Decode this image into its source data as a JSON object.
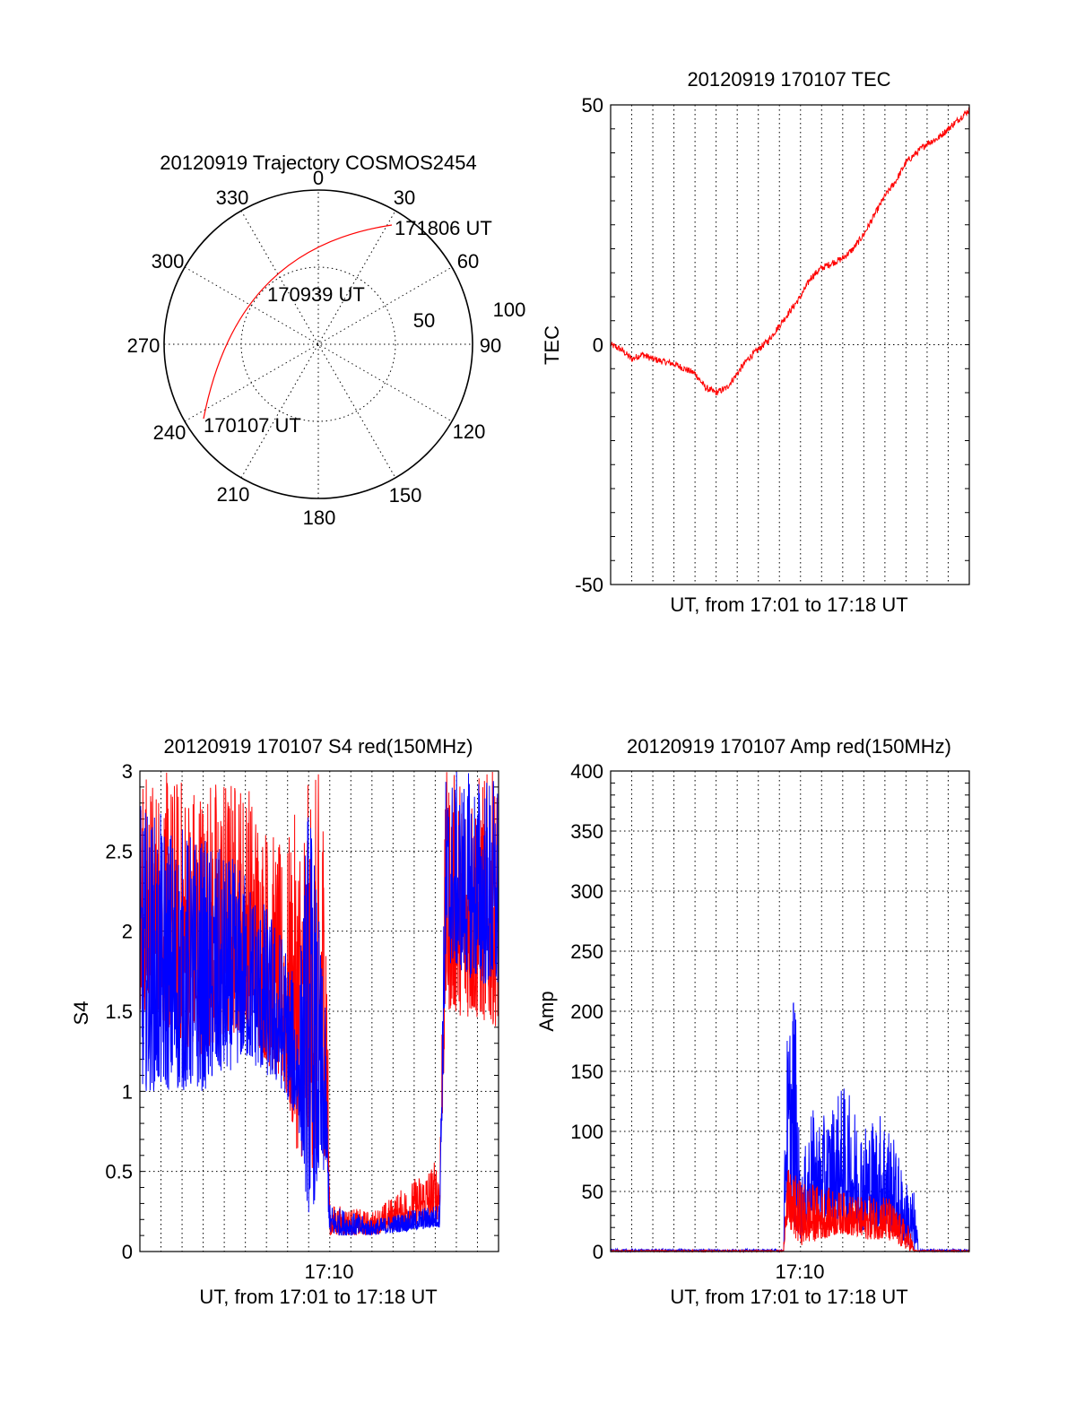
{
  "colors": {
    "red": "#ff0000",
    "blue": "#0000ff",
    "axis": "#000000"
  },
  "chart_data": [
    {
      "id": "trajectory",
      "type": "polar",
      "title": "20120919 Trajectory COSMOS2454",
      "azimuth_labels": [
        "0",
        "30",
        "60",
        "90",
        "120",
        "150",
        "180",
        "210",
        "240",
        "270",
        "300",
        "330"
      ],
      "radial_labels": [
        "50",
        "100"
      ],
      "rlim": [
        0,
        100
      ],
      "annotations": [
        {
          "text": "171806 UT",
          "az": 34,
          "r": 97
        },
        {
          "text": "170939 UT",
          "az": 355,
          "r": 32
        },
        {
          "text": "170107 UT",
          "az": 235,
          "r": 46
        }
      ],
      "trajectory": {
        "start_label": "170107 UT",
        "end_label": "171806 UT",
        "start": {
          "az": 236,
          "r": 93
        },
        "end": {
          "az": 47,
          "r": 92
        }
      }
    },
    {
      "id": "tec",
      "type": "line",
      "title": "20120919 170107 TEC",
      "xlabel": "UT, from 17:01 to 17:18 UT",
      "ylabel": "TEC",
      "x_range_minutes": [
        0,
        17.0
      ],
      "ylim": [
        -50,
        50
      ],
      "yticks": [
        "50",
        "0",
        "-50"
      ],
      "series": [
        {
          "color": "red",
          "points": [
            [
              0,
              0
            ],
            [
              0.5,
              -1
            ],
            [
              1,
              -3
            ],
            [
              1.5,
              -2
            ],
            [
              2,
              -3
            ],
            [
              3,
              -4
            ],
            [
              4,
              -6
            ],
            [
              4.5,
              -9
            ],
            [
              5,
              -10
            ],
            [
              5.5,
              -9
            ],
            [
              6,
              -6
            ],
            [
              6.5,
              -3
            ],
            [
              7,
              -1
            ],
            [
              7.5,
              1
            ],
            [
              8,
              4
            ],
            [
              8.5,
              7
            ],
            [
              9,
              10
            ],
            [
              9.5,
              14
            ],
            [
              10,
              16
            ],
            [
              10.5,
              17
            ],
            [
              11,
              18
            ],
            [
              11.5,
              20
            ],
            [
              12,
              23
            ],
            [
              12.5,
              27
            ],
            [
              13,
              31
            ],
            [
              13.5,
              34
            ],
            [
              14,
              38
            ],
            [
              14.5,
              40
            ],
            [
              15,
              42
            ],
            [
              15.5,
              43
            ],
            [
              16,
              45
            ],
            [
              16.5,
              47
            ],
            [
              17,
              49
            ]
          ]
        }
      ]
    },
    {
      "id": "s4",
      "type": "line",
      "title": "20120919 170107 S4 red(150MHz)",
      "xlabel": "UT, from 17:01 to 17:18 UT",
      "ylabel": "S4",
      "xticks": [
        "17:10"
      ],
      "x_range_minutes": [
        0,
        17.0
      ],
      "ylim": [
        0,
        3
      ],
      "yticks": [
        "0",
        "0.5",
        "1",
        "1.5",
        "2",
        "2.5",
        "3"
      ],
      "series": [
        {
          "color": "red",
          "envelope": [
            [
              0,
              1.5,
              3
            ],
            [
              3,
              1.2,
              3
            ],
            [
              5,
              1.4,
              3
            ],
            [
              6.8,
              1.0,
              2.5
            ],
            [
              7.5,
              0.6,
              2.8
            ],
            [
              8.2,
              0.5,
              3
            ],
            [
              8.8,
              0.6,
              3
            ],
            [
              9.0,
              0.1,
              0.3
            ],
            [
              11,
              0.1,
              0.25
            ],
            [
              12.5,
              0.15,
              0.4
            ],
            [
              14.2,
              0.2,
              0.6
            ],
            [
              14.5,
              1.5,
              3
            ],
            [
              17,
              1.4,
              3
            ]
          ]
        },
        {
          "color": "blue",
          "envelope": [
            [
              0,
              1.0,
              2.8
            ],
            [
              3,
              1.0,
              2.6
            ],
            [
              5,
              1.2,
              2.4
            ],
            [
              6.8,
              1.0,
              2.0
            ],
            [
              7.5,
              0.8,
              1.6
            ],
            [
              8.0,
              0.2,
              3
            ],
            [
              8.8,
              0.5,
              1.5
            ],
            [
              9.0,
              0.1,
              0.3
            ],
            [
              11,
              0.1,
              0.2
            ],
            [
              14.2,
              0.15,
              0.3
            ],
            [
              14.5,
              1.8,
              3
            ],
            [
              17,
              1.6,
              3
            ]
          ]
        }
      ]
    },
    {
      "id": "amp",
      "type": "line",
      "title": "20120919 170107 Amp red(150MHz)",
      "xlabel": "UT, from 17:01 to 17:18 UT",
      "ylabel": "Amp",
      "xticks": [
        "17:10"
      ],
      "x_range_minutes": [
        0,
        17.0
      ],
      "ylim": [
        0,
        400
      ],
      "yticks": [
        "0",
        "50",
        "100",
        "150",
        "200",
        "250",
        "300",
        "350",
        "400"
      ],
      "series": [
        {
          "color": "blue",
          "envelope": [
            [
              0,
              0,
              2
            ],
            [
              8.2,
              0,
              2
            ],
            [
              8.3,
              40,
              170
            ],
            [
              8.7,
              20,
              240
            ],
            [
              9.0,
              10,
              60
            ],
            [
              9.5,
              30,
              120
            ],
            [
              10,
              20,
              110
            ],
            [
              11,
              25,
              140
            ],
            [
              12,
              15,
              110
            ],
            [
              13,
              20,
              120
            ],
            [
              14.0,
              5,
              60
            ],
            [
              14.4,
              0,
              50
            ],
            [
              14.6,
              0,
              2
            ],
            [
              17,
              0,
              2
            ]
          ]
        },
        {
          "color": "red",
          "envelope": [
            [
              0,
              0,
              1
            ],
            [
              8.2,
              0,
              1
            ],
            [
              8.3,
              20,
              70
            ],
            [
              9.0,
              5,
              60
            ],
            [
              10,
              10,
              55
            ],
            [
              11,
              15,
              50
            ],
            [
              12,
              10,
              45
            ],
            [
              13,
              10,
              50
            ],
            [
              14.2,
              0,
              20
            ],
            [
              14.4,
              0,
              1
            ],
            [
              17,
              0,
              1
            ]
          ]
        }
      ]
    }
  ]
}
